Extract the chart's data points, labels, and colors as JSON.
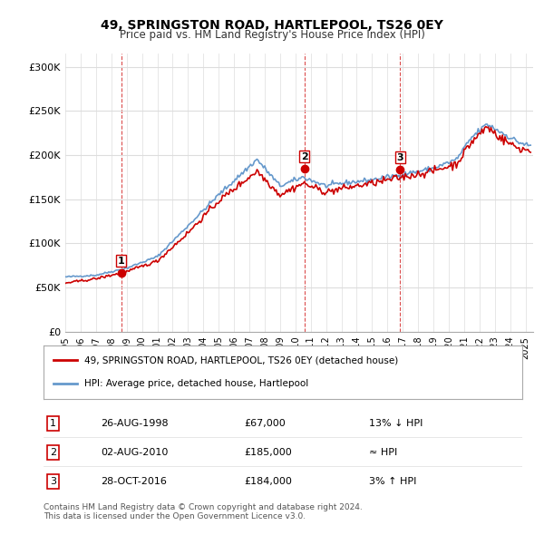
{
  "title_line1": "49, SPRINGSTON ROAD, HARTLEPOOL, TS26 0EY",
  "title_line2": "Price paid vs. HM Land Registry's House Price Index (HPI)",
  "ylabel_ticks": [
    "£0",
    "£50K",
    "£100K",
    "£150K",
    "£200K",
    "£250K",
    "£300K"
  ],
  "ytick_values": [
    0,
    50000,
    100000,
    150000,
    200000,
    250000,
    300000
  ],
  "ylim": [
    0,
    315000
  ],
  "xlim_start": 1995.0,
  "xlim_end": 2025.5,
  "sales": [
    {
      "date_num": 1998.65,
      "price": 67000,
      "label": "1"
    },
    {
      "date_num": 2010.58,
      "price": 185000,
      "label": "2"
    },
    {
      "date_num": 2016.82,
      "price": 184000,
      "label": "3"
    }
  ],
  "sale_vline_color": "#cc0000",
  "sale_dot_color": "#cc0000",
  "legend_label_red": "49, SPRINGSTON ROAD, HARTLEPOOL, TS26 0EY (detached house)",
  "legend_label_blue": "HPI: Average price, detached house, Hartlepool",
  "table_rows": [
    {
      "num": "1",
      "date": "26-AUG-1998",
      "price": "£67,000",
      "note": "13% ↓ HPI"
    },
    {
      "num": "2",
      "date": "02-AUG-2010",
      "price": "£185,000",
      "note": "≈ HPI"
    },
    {
      "num": "3",
      "date": "28-OCT-2016",
      "price": "£184,000",
      "note": "3% ↑ HPI"
    }
  ],
  "footer": "Contains HM Land Registry data © Crown copyright and database right 2024.\nThis data is licensed under the Open Government Licence v3.0.",
  "hpi_color": "#6699cc",
  "price_color": "#cc0000",
  "background_color": "#ffffff",
  "grid_color": "#dddddd"
}
